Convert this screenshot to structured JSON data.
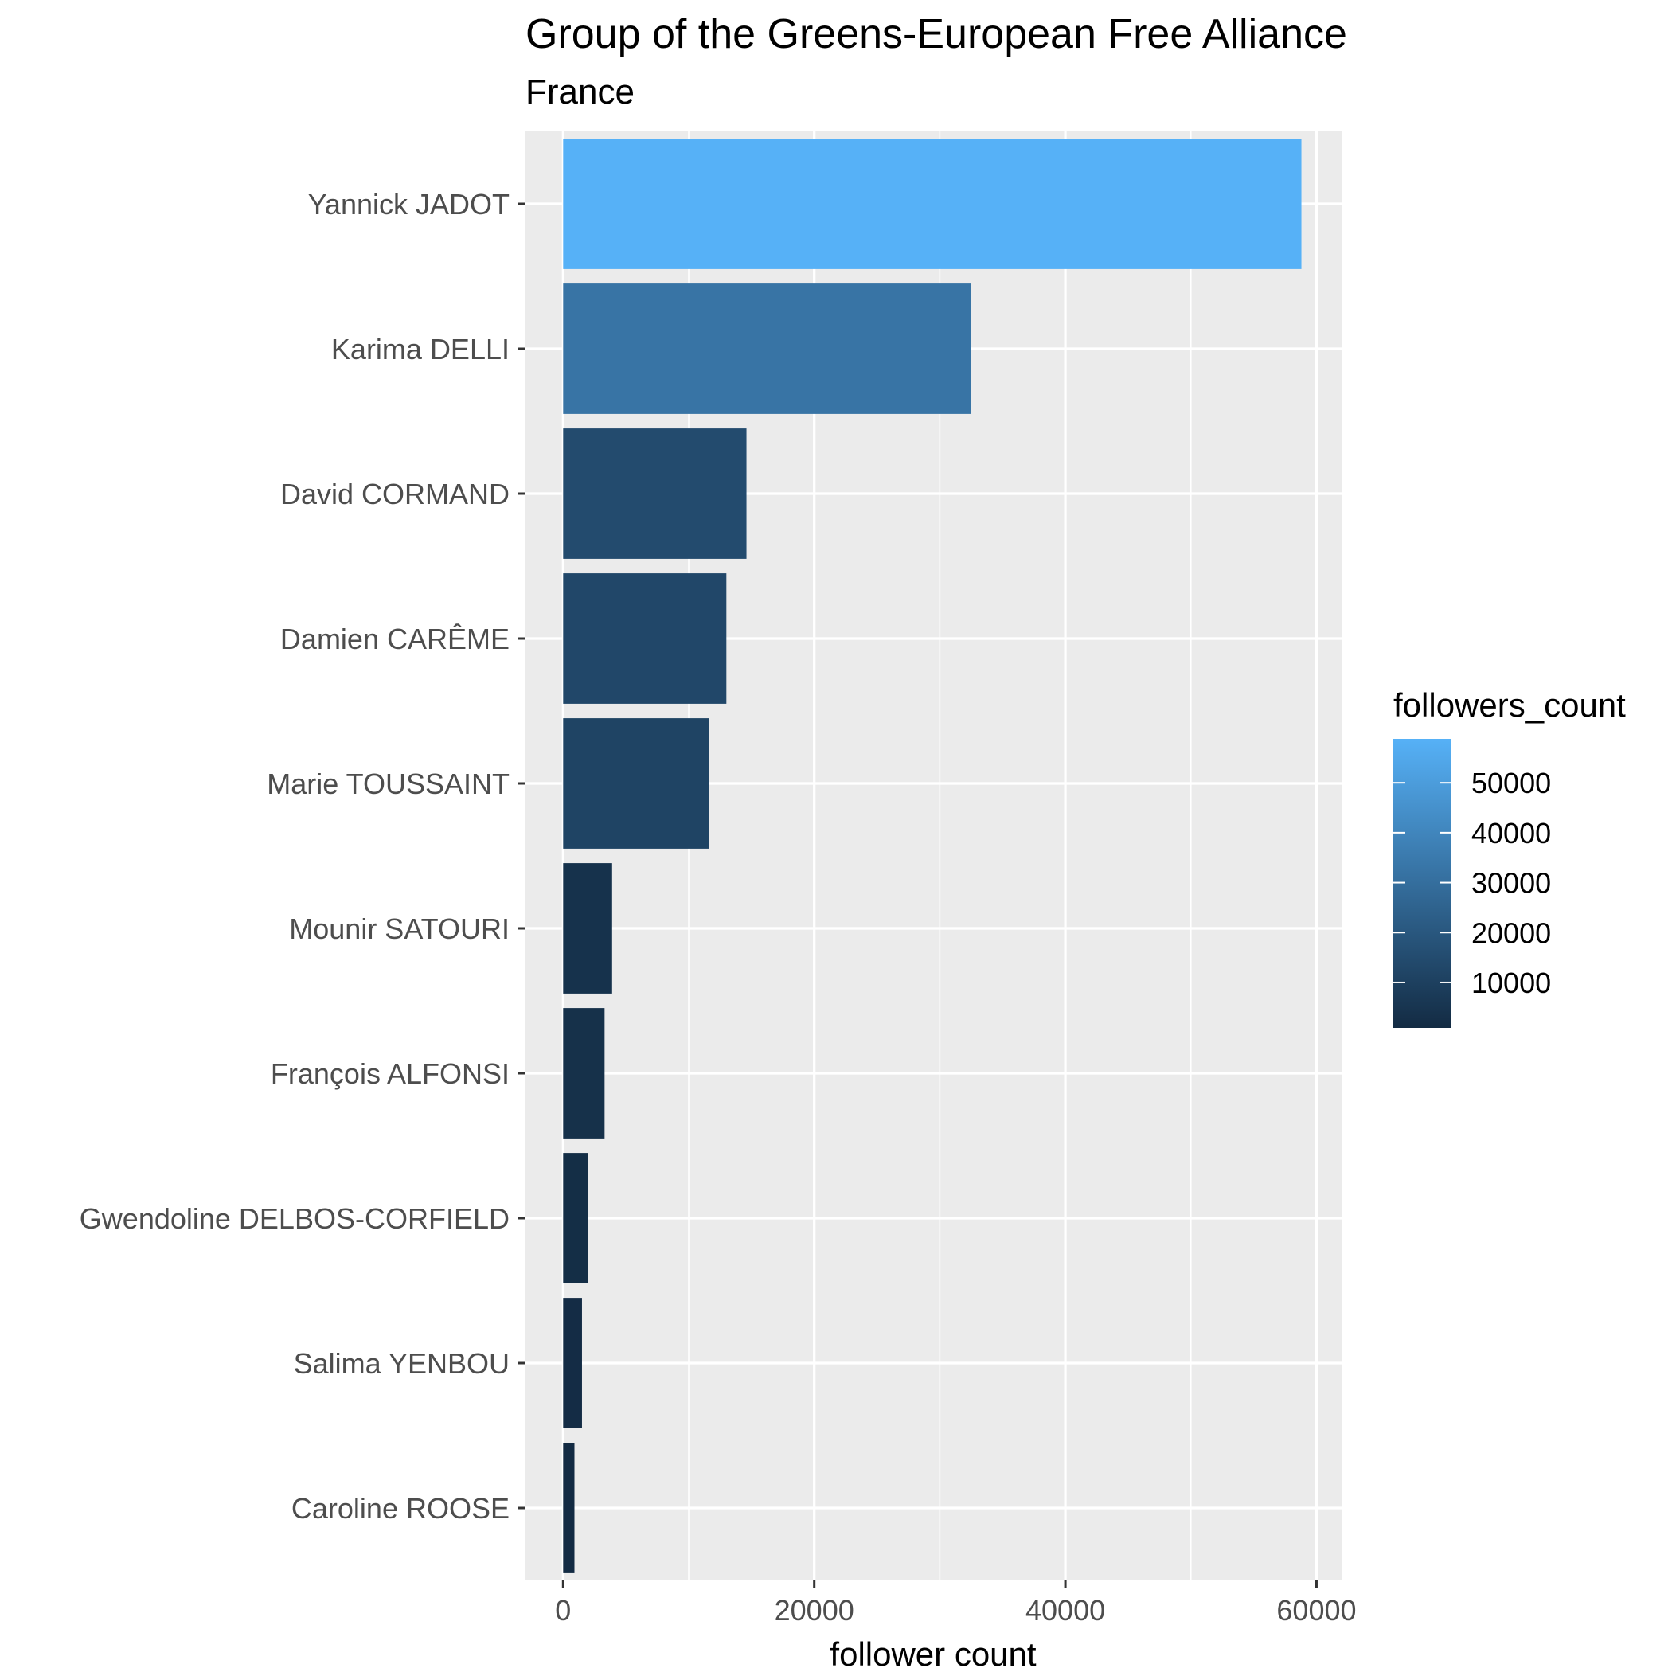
{
  "chart_data": {
    "type": "bar",
    "orientation": "horizontal",
    "title": "Group of the Greens-European Free Alliance",
    "subtitle": "France",
    "xlabel": "follower count",
    "ylabel": "",
    "xlim": [
      -3000,
      62000
    ],
    "x_ticks": [
      0,
      20000,
      40000,
      60000
    ],
    "x_tick_labels": [
      "0",
      "20000",
      "40000",
      "60000"
    ],
    "categories": [
      "Yannick JADOT",
      "Karima DELLI",
      "David CORMAND",
      "Damien CARÊME",
      "Marie TOUSSAINT",
      "Mounir SATOURI",
      "François ALFONSI",
      "Gwendoline DELBOS-CORFIELD",
      "Salima YENBOU",
      "Caroline ROOSE"
    ],
    "values": [
      58800,
      32500,
      14600,
      13000,
      11600,
      3900,
      3300,
      2000,
      1500,
      900
    ],
    "grid": true,
    "background": "#ebebeb",
    "legend": {
      "title": "followers_count",
      "position": "right",
      "type": "colorbar",
      "ticks": [
        10000,
        20000,
        30000,
        40000,
        50000
      ],
      "tick_labels": [
        "10000",
        "20000",
        "30000",
        "40000",
        "50000"
      ],
      "color_low": "#132b43",
      "color_high": "#56b1f7"
    }
  }
}
